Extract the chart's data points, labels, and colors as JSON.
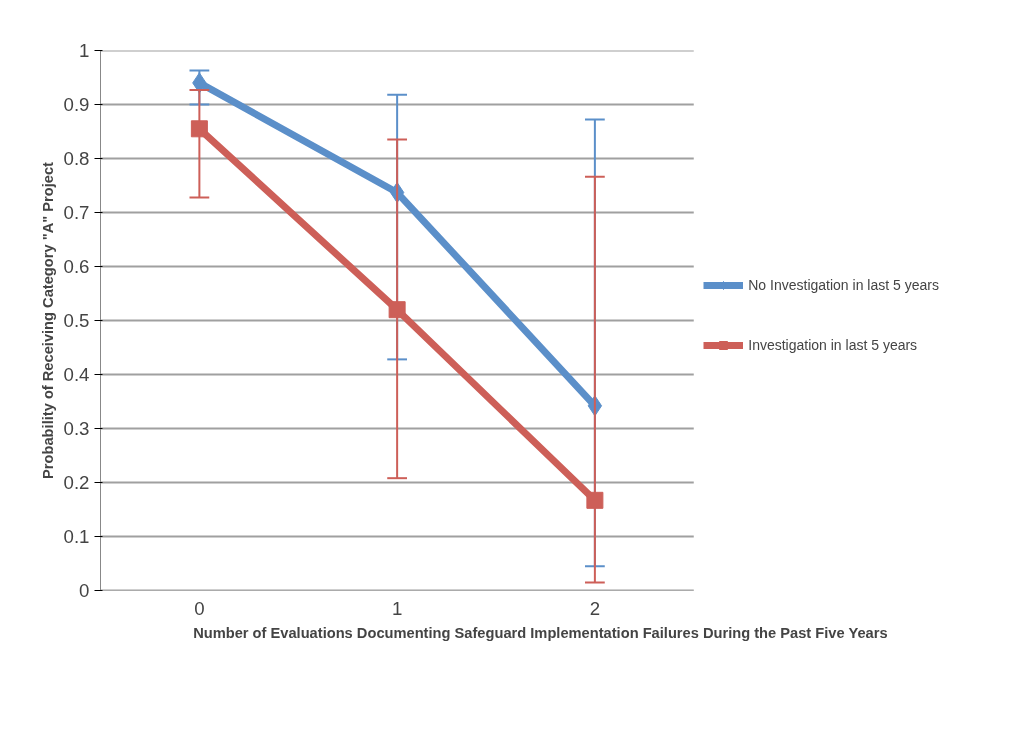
{
  "chart_data": {
    "type": "line",
    "xlabel": "Number of Evaluations Documenting Safeguard Implementation Failures During the Past Five Years",
    "ylabel": "Probability of Receiving Category \"A\" Project",
    "categories": [
      "0",
      "1",
      "2"
    ],
    "series": [
      {
        "name": "No Investigation in last 5 years",
        "color": "#5b8fc9",
        "marker": "diamond",
        "values": [
          0.94,
          0.737,
          0.342
        ],
        "errors": [
          [
            0.9,
            0.963
          ],
          [
            0.428,
            0.918
          ],
          [
            0.045,
            0.872
          ]
        ]
      },
      {
        "name": "Investigation in last 5 years",
        "color": "#cd5f58",
        "marker": "square",
        "values": [
          0.855,
          0.52,
          0.167
        ],
        "errors": [
          [
            0.728,
            0.927
          ],
          [
            0.208,
            0.835
          ],
          [
            0.015,
            0.766
          ]
        ]
      }
    ],
    "ylim": [
      0,
      1
    ],
    "yticks": [
      0,
      0.1,
      0.2,
      0.3,
      0.4,
      0.5,
      0.6,
      0.7,
      0.8,
      0.9,
      1
    ],
    "grid": "y",
    "legend": "right",
    "line_style": "solid"
  }
}
